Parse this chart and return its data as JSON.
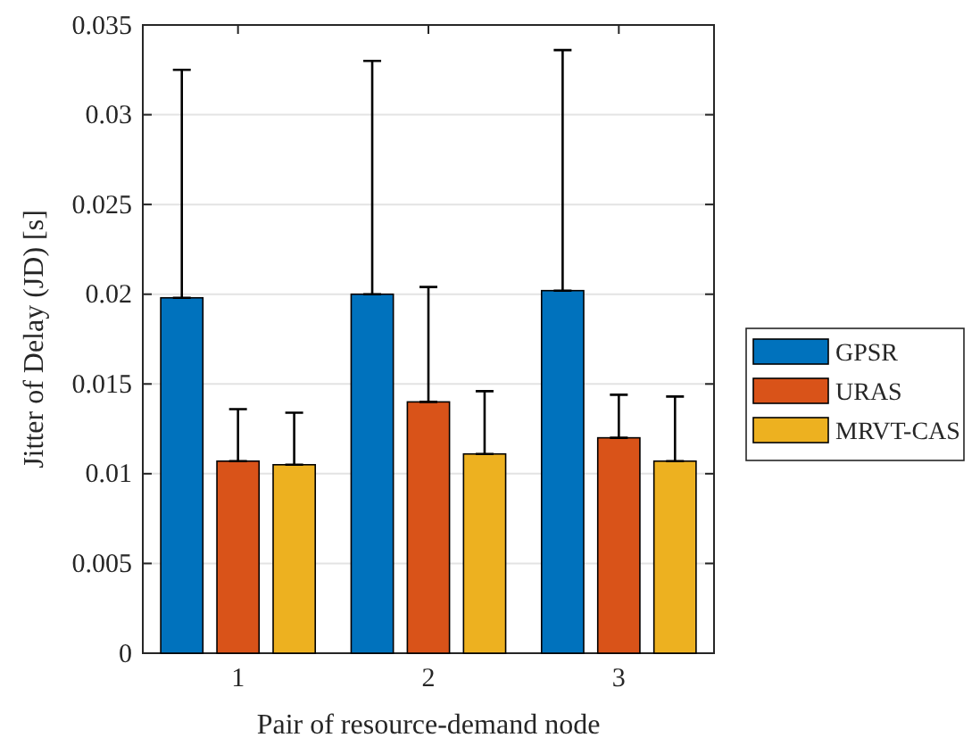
{
  "chart_data": {
    "type": "bar",
    "xlabel": "Pair of resource-demand node",
    "ylabel": "Jitter of Delay (JD) [s]",
    "categories": [
      "1",
      "2",
      "3"
    ],
    "series": [
      {
        "name": "GPSR",
        "color": "#0072bd",
        "values": [
          0.0198,
          0.02,
          0.0202
        ],
        "errors": [
          [
            0.0198,
            0.0325
          ],
          [
            0.02,
            0.033
          ],
          [
            0.0202,
            0.0336
          ]
        ]
      },
      {
        "name": "URAS",
        "color": "#d95319",
        "values": [
          0.0107,
          0.014,
          0.012
        ],
        "errors": [
          [
            0.0107,
            0.0136
          ],
          [
            0.014,
            0.0204
          ],
          [
            0.012,
            0.0144
          ]
        ]
      },
      {
        "name": "MRVT-CAS",
        "color": "#edb120",
        "values": [
          0.0105,
          0.0111,
          0.0107
        ],
        "errors": [
          [
            0.0105,
            0.0134
          ],
          [
            0.0111,
            0.0146
          ],
          [
            0.0107,
            0.0143
          ]
        ]
      }
    ],
    "ylim": [
      0,
      0.035
    ],
    "yticks": [
      0,
      0.005,
      0.01,
      0.015,
      0.02,
      0.025,
      0.03,
      0.035
    ],
    "grid": "y",
    "legend": "right"
  }
}
